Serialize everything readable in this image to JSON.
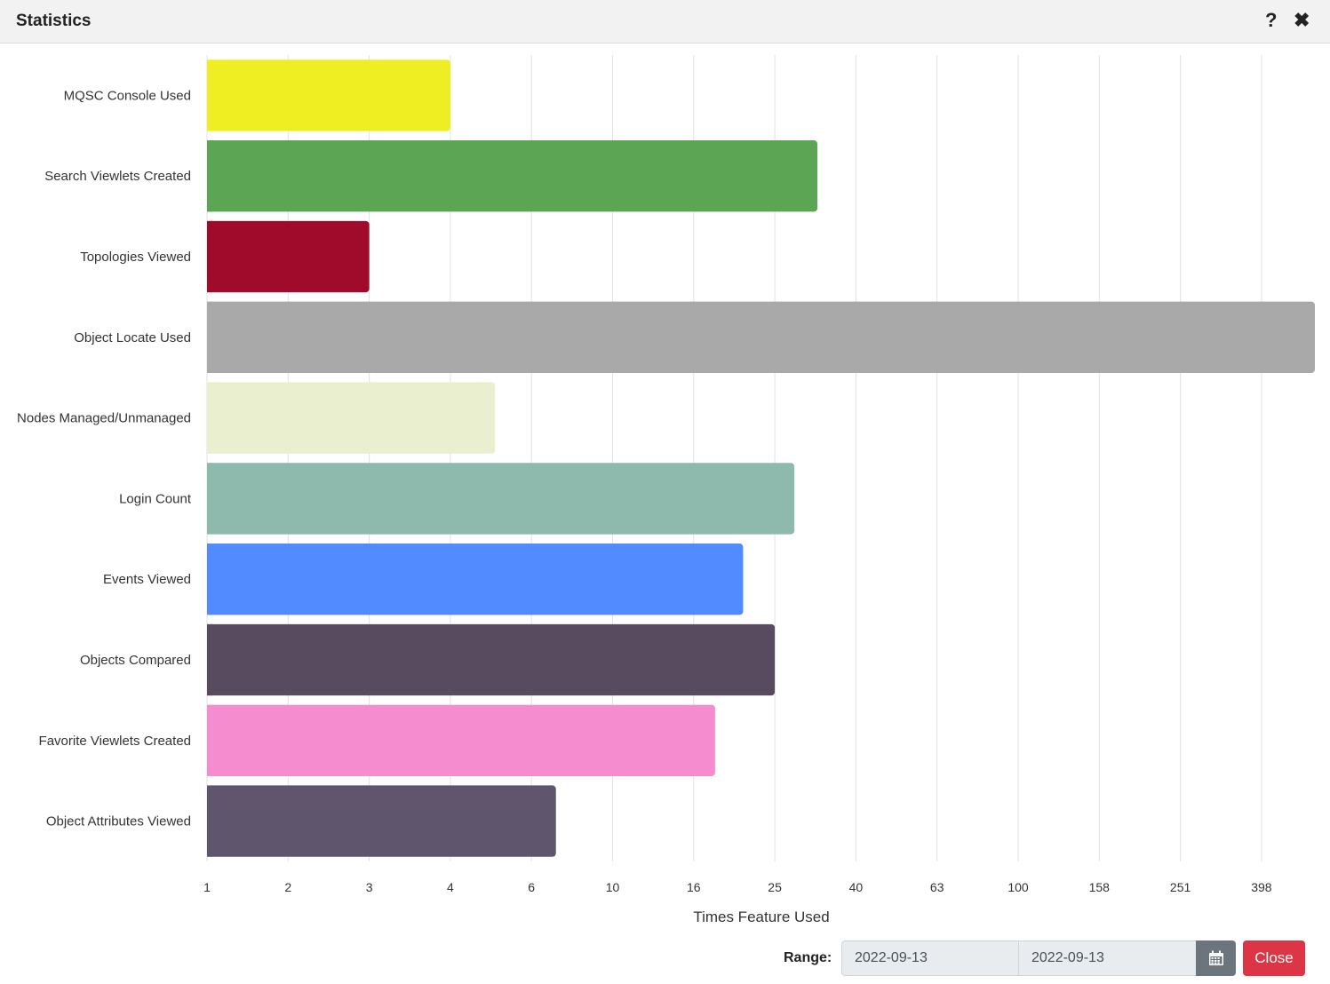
{
  "window": {
    "title": "Statistics"
  },
  "icons": {
    "help": "question-mark-icon",
    "close": "close-icon",
    "calendar": "calendar-icon"
  },
  "footer": {
    "range_label": "Range:",
    "date_from": "2022-09-13",
    "date_to": "2022-09-13",
    "close_label": "Close"
  },
  "colors": {
    "close_button": "#dc3545",
    "calendar_button": "#6c757d"
  },
  "chart_data": {
    "type": "bar",
    "orientation": "horizontal",
    "scale": "log",
    "categories": [
      "MQSC Console Used",
      "Search Viewlets Created",
      "Topologies Viewed",
      "Object Locate Used",
      "Nodes Managed/Unmanaged",
      "Login Count",
      "Events Viewed",
      "Objects Compared",
      "Favorite Viewlets Created",
      "Object Attributes Viewed"
    ],
    "values": [
      4,
      32,
      3,
      650,
      5,
      28,
      21,
      25,
      18,
      7
    ],
    "colors": [
      "#eeee22",
      "#5ca555",
      "#a10b2b",
      "#a9a9a9",
      "#eaf0cf",
      "#8eb9ad",
      "#528bff",
      "#584b60",
      "#f48ccf",
      "#5f566d"
    ],
    "xticks": [
      "1",
      "2",
      "3",
      "4",
      "6",
      "10",
      "16",
      "25",
      "40",
      "63",
      "100",
      "158",
      "251",
      "398"
    ],
    "xlabel": "Times Feature Used",
    "grid": true
  }
}
